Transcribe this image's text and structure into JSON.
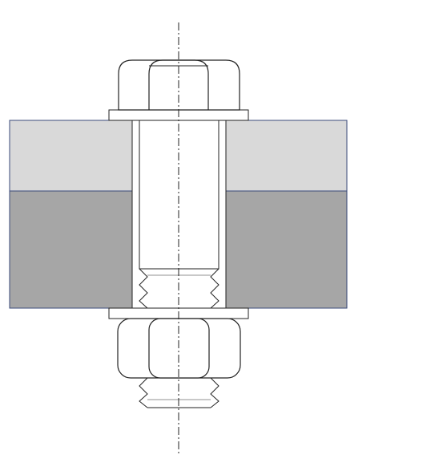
{
  "diagram": {
    "subject": "bolted-joint-cross-section",
    "components": [
      {
        "id": "hex-bolt-head",
        "kind": "hex-head"
      },
      {
        "id": "top-washer",
        "kind": "washer"
      },
      {
        "id": "upper-plate-left",
        "kind": "plate"
      },
      {
        "id": "upper-plate-right",
        "kind": "plate"
      },
      {
        "id": "lower-plate-left",
        "kind": "plate"
      },
      {
        "id": "lower-plate-right",
        "kind": "plate"
      },
      {
        "id": "bolt-shank",
        "kind": "shank"
      },
      {
        "id": "bolt-thread",
        "kind": "thread"
      },
      {
        "id": "bottom-washer",
        "kind": "washer"
      },
      {
        "id": "hex-nut",
        "kind": "hex-nut"
      },
      {
        "id": "protruding-thread",
        "kind": "thread"
      },
      {
        "id": "center-axis",
        "kind": "center-line"
      }
    ],
    "colors": {
      "line": "#222222",
      "plate_outline": "#3a4a7a",
      "upper_plate_fill": "#d9d9d9",
      "lower_plate_fill": "#a6a6a6",
      "background": "#ffffff",
      "part_fill": "#ffffff"
    }
  }
}
